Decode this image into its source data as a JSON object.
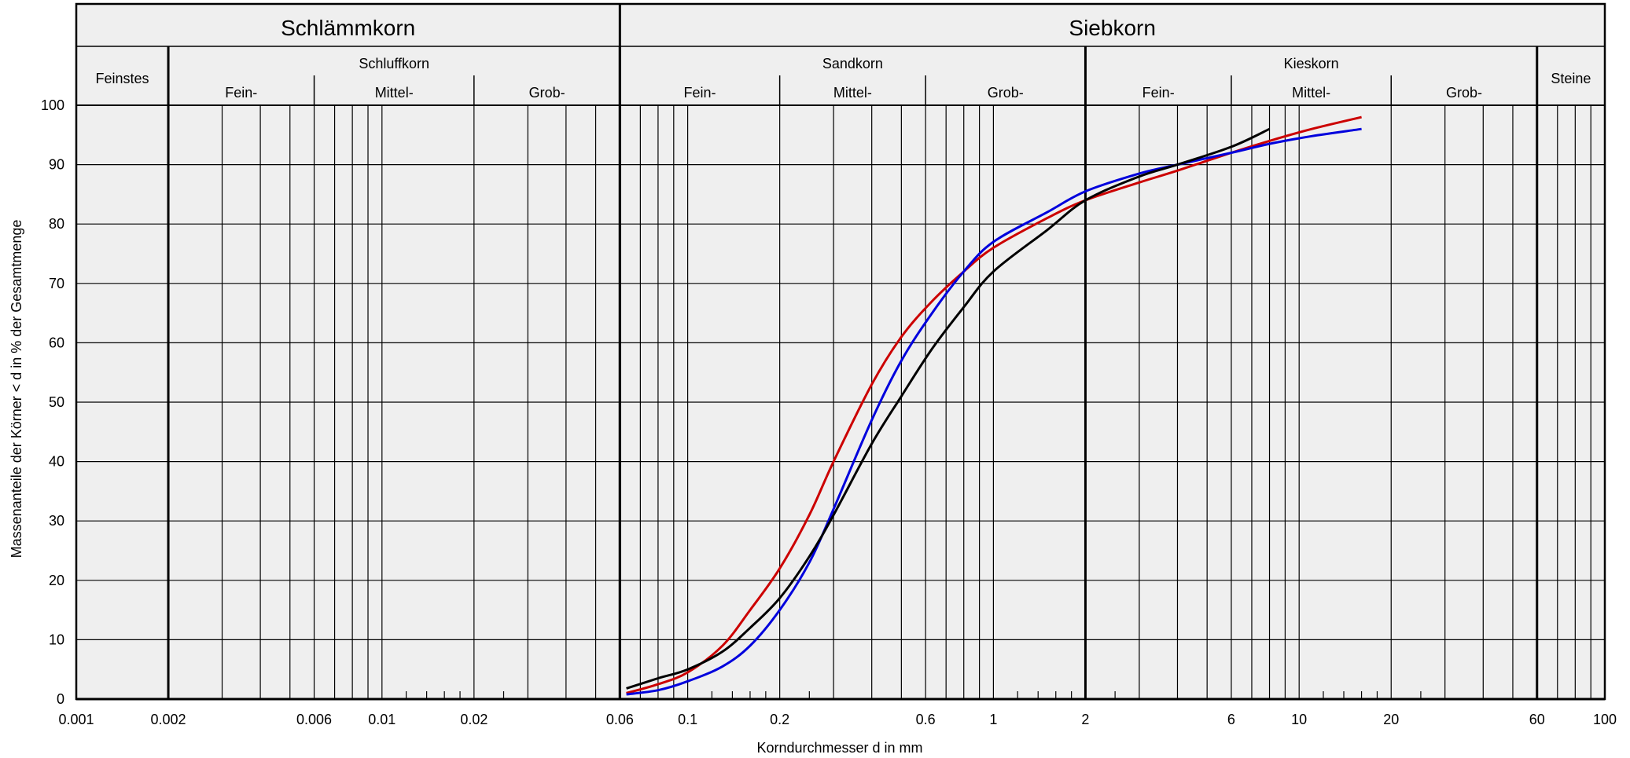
{
  "chart_data": {
    "type": "line",
    "x_scale": "log",
    "xlabel": "Korndurchmesser d in mm",
    "ylabel": "Massenanteile der Körner < d in % der Gesamtmenge",
    "xlim": [
      0.001,
      100
    ],
    "ylim": [
      0,
      100
    ],
    "grid": true,
    "x_ticks": [
      {
        "value": 0.001,
        "label": "0.001"
      },
      {
        "value": 0.002,
        "label": "0.002"
      },
      {
        "value": 0.006,
        "label": "0.006"
      },
      {
        "value": 0.01,
        "label": "0.01"
      },
      {
        "value": 0.02,
        "label": "0.02"
      },
      {
        "value": 0.06,
        "label": "0.06"
      },
      {
        "value": 0.1,
        "label": "0.1"
      },
      {
        "value": 0.2,
        "label": "0.2"
      },
      {
        "value": 0.6,
        "label": "0.6"
      },
      {
        "value": 1,
        "label": "1"
      },
      {
        "value": 2,
        "label": "2"
      },
      {
        "value": 6,
        "label": "6"
      },
      {
        "value": 10,
        "label": "10"
      },
      {
        "value": 20,
        "label": "20"
      },
      {
        "value": 60,
        "label": "60"
      },
      {
        "value": 100,
        "label": "100"
      }
    ],
    "y_ticks": [
      0,
      10,
      20,
      30,
      40,
      50,
      60,
      70,
      80,
      90,
      100
    ],
    "bold_vlines": [
      0.002,
      0.06,
      2,
      60
    ],
    "grid_vlines": [
      0.003,
      0.004,
      0.005,
      0.006,
      0.007,
      0.008,
      0.009,
      0.01,
      0.02,
      0.03,
      0.04,
      0.05,
      0.07,
      0.08,
      0.09,
      0.1,
      0.2,
      0.3,
      0.4,
      0.5,
      0.6,
      0.7,
      0.8,
      0.9,
      1,
      3,
      4,
      5,
      6,
      7,
      8,
      9,
      10,
      20,
      30,
      40,
      50,
      70,
      80,
      90
    ],
    "short_ticks": [
      0.012,
      0.014,
      0.016,
      0.018,
      0.025,
      0.12,
      0.14,
      0.16,
      0.18,
      0.25,
      1.2,
      1.4,
      1.6,
      1.8,
      2.5,
      12,
      14,
      16,
      18,
      25
    ],
    "header": {
      "top": [
        {
          "label": "Schlämmkorn",
          "from": 0.001,
          "to": 0.06
        },
        {
          "label": "Siebkorn",
          "from": 0.06,
          "to": 100
        }
      ],
      "middle": [
        {
          "label": "Feinstes",
          "from": 0.001,
          "to": 0.002,
          "full": true
        },
        {
          "label": "Schluffkorn",
          "from": 0.002,
          "to": 0.06,
          "full": false
        },
        {
          "label": "Sandkorn",
          "from": 0.06,
          "to": 2,
          "full": false
        },
        {
          "label": "Kieskorn",
          "from": 2,
          "to": 60,
          "full": false
        },
        {
          "label": "Steine",
          "from": 60,
          "to": 100,
          "full": true
        }
      ],
      "sub": [
        {
          "label": "Fein-",
          "from": 0.002,
          "to": 0.006
        },
        {
          "label": "Mittel-",
          "from": 0.006,
          "to": 0.02
        },
        {
          "label": "Grob-",
          "from": 0.02,
          "to": 0.06
        },
        {
          "label": "Fein-",
          "from": 0.06,
          "to": 0.2
        },
        {
          "label": "Mittel-",
          "from": 0.2,
          "to": 0.6
        },
        {
          "label": "Grob-",
          "from": 0.6,
          "to": 2
        },
        {
          "label": "Fein-",
          "from": 2,
          "to": 6
        },
        {
          "label": "Mittel-",
          "from": 6,
          "to": 20
        },
        {
          "label": "Grob-",
          "from": 20,
          "to": 60
        }
      ]
    },
    "series": [
      {
        "color": "#cc0000",
        "points": [
          [
            0.063,
            1
          ],
          [
            0.08,
            2.5
          ],
          [
            0.1,
            4.5
          ],
          [
            0.13,
            9
          ],
          [
            0.16,
            15
          ],
          [
            0.2,
            22
          ],
          [
            0.25,
            31
          ],
          [
            0.3,
            40
          ],
          [
            0.4,
            53
          ],
          [
            0.5,
            61
          ],
          [
            0.63,
            67
          ],
          [
            0.8,
            72
          ],
          [
            1,
            76
          ],
          [
            1.5,
            81
          ],
          [
            2,
            84
          ],
          [
            3,
            87
          ],
          [
            4,
            89
          ],
          [
            6,
            92
          ],
          [
            8,
            94
          ],
          [
            11,
            96
          ],
          [
            16,
            98
          ]
        ]
      },
      {
        "color": "#0000dd",
        "points": [
          [
            0.063,
            0.8
          ],
          [
            0.08,
            1.5
          ],
          [
            0.1,
            3
          ],
          [
            0.13,
            5.5
          ],
          [
            0.16,
            9
          ],
          [
            0.2,
            15
          ],
          [
            0.25,
            23
          ],
          [
            0.3,
            32
          ],
          [
            0.4,
            47
          ],
          [
            0.5,
            57
          ],
          [
            0.63,
            65
          ],
          [
            0.8,
            72
          ],
          [
            1,
            77
          ],
          [
            1.5,
            82
          ],
          [
            2,
            85.5
          ],
          [
            3,
            88.5
          ],
          [
            4,
            90
          ],
          [
            6,
            92
          ],
          [
            8,
            93.5
          ],
          [
            11,
            94.8
          ],
          [
            16,
            96
          ]
        ]
      },
      {
        "color": "#000000",
        "points": [
          [
            0.063,
            1.8
          ],
          [
            0.08,
            3.5
          ],
          [
            0.1,
            5
          ],
          [
            0.13,
            8
          ],
          [
            0.16,
            12
          ],
          [
            0.2,
            17
          ],
          [
            0.25,
            24
          ],
          [
            0.3,
            31
          ],
          [
            0.4,
            43
          ],
          [
            0.5,
            51
          ],
          [
            0.63,
            59
          ],
          [
            0.8,
            66
          ],
          [
            1,
            72
          ],
          [
            1.5,
            79
          ],
          [
            2,
            84
          ],
          [
            3,
            88
          ],
          [
            4,
            90
          ],
          [
            6,
            93
          ],
          [
            8,
            96
          ]
        ]
      }
    ]
  }
}
